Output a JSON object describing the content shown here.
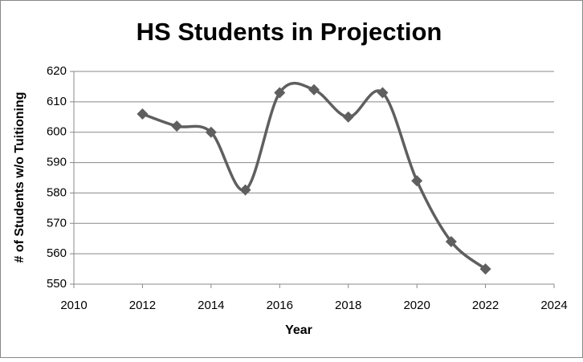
{
  "chart_data": {
    "type": "line",
    "title": "HS Students in Projection",
    "x_label": "Year",
    "y_label": "# of Students w/o Tuitioning",
    "x": [
      2012,
      2013,
      2014,
      2015,
      2016,
      2017,
      2018,
      2019,
      2020,
      2021,
      2022
    ],
    "series": [
      {
        "name": "HS Students",
        "color": "#5f5f5f",
        "values": [
          606,
          602,
          600,
          581,
          613,
          614,
          605,
          613,
          584,
          564,
          555
        ]
      }
    ],
    "xlim": [
      2010,
      2024
    ],
    "xticks": [
      2010,
      2012,
      2014,
      2016,
      2018,
      2020,
      2022,
      2024
    ],
    "ylim": [
      550,
      620
    ],
    "yticks": [
      550,
      560,
      570,
      580,
      590,
      600,
      610,
      620
    ],
    "grid": true,
    "smooth": true,
    "marker": "diamond"
  }
}
